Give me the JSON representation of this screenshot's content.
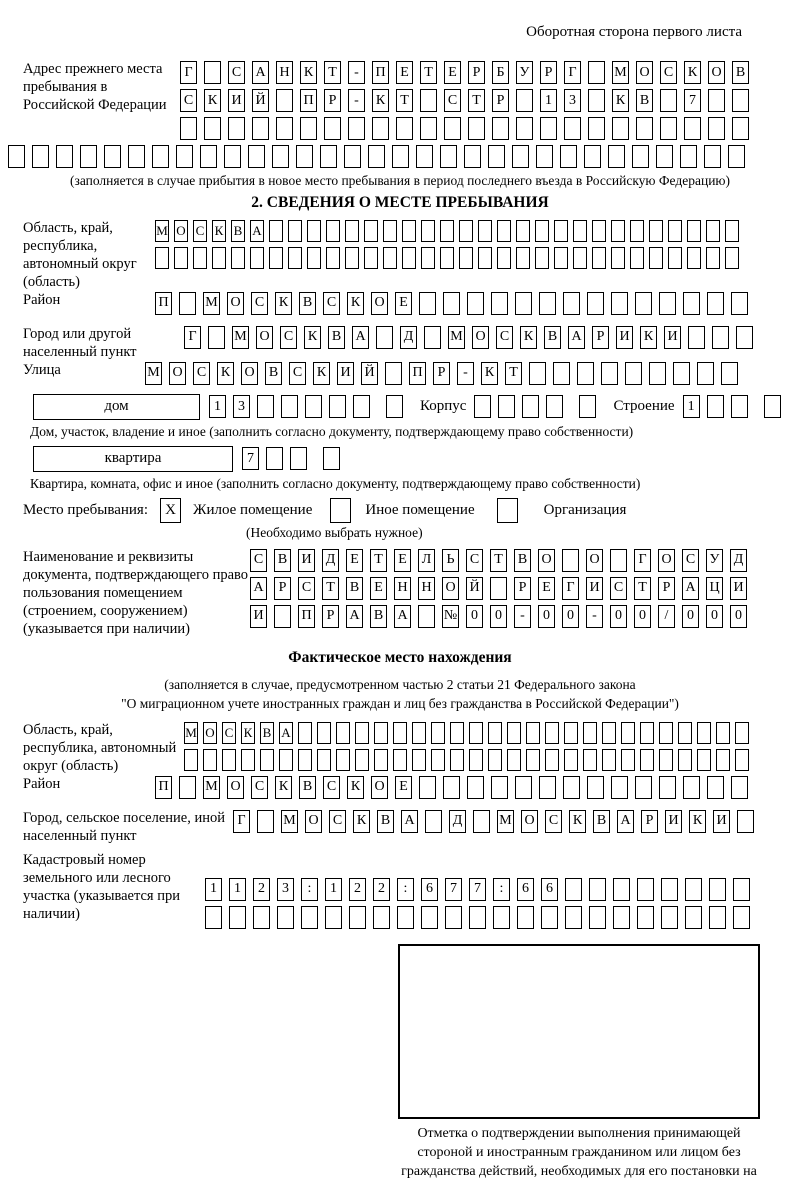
{
  "page": {
    "back_note": "Оборотная сторона первого листа"
  },
  "section_prev": {
    "label": "Адрес прежнего места пребывания в Российской Федерации",
    "rows": [
      {
        "n": 24,
        "text": "Г САНКТ-ПЕТЕРБУРГ МОСКОВ"
      },
      {
        "n": 24,
        "text": "СКИЙ ПР-КТ СТР 13 КВ 7"
      },
      {
        "n": 24,
        "text": ""
      }
    ],
    "overflow_row": {
      "n": 31,
      "text": ""
    },
    "caption": "(заполняется в случае прибытия в новое место пребывания в период последнего въезда в Российскую Федерацию)"
  },
  "section2": {
    "title": "2. СВЕДЕНИЯ О МЕСТЕ ПРЕБЫВАНИЯ",
    "region": {
      "label": "Область, край, республика, автономный округ (область)",
      "rows": [
        {
          "n": 31,
          "text": "МОСКВА"
        },
        {
          "n": 31,
          "text": ""
        }
      ]
    },
    "district": {
      "label": "Район",
      "row": {
        "n": 25,
        "text": "П МОСКВСКОЕ"
      }
    },
    "city": {
      "label": "Город или другой населенный пункт",
      "row": {
        "n": 24,
        "text": "Г МОСКВА Д МОСКВАРИКИ"
      }
    },
    "street": {
      "label": "Улица",
      "row": {
        "n": 25,
        "text": "МОСКОВСКИЙ ПР-КТ"
      }
    },
    "house": {
      "type_label": "дом",
      "number": {
        "n": 8,
        "text": "13"
      },
      "korpus_label": "Корпус",
      "korpus": {
        "n": 5,
        "text": ""
      },
      "stroenie_label": "Строение",
      "stroenie": {
        "n": 4,
        "text": "1"
      },
      "caption": "Дом, участок, владение и иное (заполнить согласно документу, подтверждающему право собственности)"
    },
    "apartment": {
      "type_label": "квартира",
      "number": {
        "n": 4,
        "text": "7"
      },
      "caption": "Квартира, комната, офис и иное (заполнить согласно документу, подтверждающему право собственности)"
    },
    "stay": {
      "label": "Место пребывания:",
      "options": [
        {
          "label": "Жилое помещение",
          "mark": "X"
        },
        {
          "label": "Иное помещение",
          "mark": ""
        },
        {
          "label": "Организация",
          "mark": ""
        }
      ],
      "caption": "(Необходимо выбрать нужное)"
    },
    "document": {
      "label": "Наименование и реквизиты документа, подтверждающего право пользования помещением (строением, сооружением) (указывается при наличии)",
      "rows": [
        {
          "n": 21,
          "text": "СВИДЕТЕЛЬСТВО О ГОСУД"
        },
        {
          "n": 21,
          "text": "АРСТВЕННОЙ РЕГИСТРАЦИ"
        },
        {
          "n": 21,
          "text": "И ПРАВА №00-00-00/000"
        }
      ]
    }
  },
  "section_actual": {
    "title": "Фактическое место нахождения",
    "note_line1": "(заполняется в случае, предусмотренном частью 2 статьи 21 Федерального закона",
    "note_line2": "\"О миграционном учете иностранных граждан и лиц без гражданства в Российской Федерации\")",
    "region": {
      "label": "Область, край, республика, автономный округ (область)",
      "rows": [
        {
          "n": 30,
          "text": "МОСКВА"
        },
        {
          "n": 30,
          "text": ""
        }
      ]
    },
    "district": {
      "label": "Район",
      "row": {
        "n": 25,
        "text": "П МОСКВСКОЕ"
      }
    },
    "city": {
      "label": "Город, сельское поселение, иной населенный пункт",
      "row": {
        "n": 22,
        "text": "Г МОСКВА Д МОСКВАРИКИ"
      }
    },
    "cadastral": {
      "label": "Кадастровый номер земельного или лесного участка (указывается при наличии)",
      "rows": [
        {
          "n": 23,
          "text": "1123:122:677:66"
        },
        {
          "n": 23,
          "text": ""
        }
      ]
    },
    "stamp_caption": "Отметка о подтверждении выполнения принимающей стороной и иностранным гражданином или лицом без гражданства действий, необходимых для его постановки на учет по месту пребывания"
  }
}
